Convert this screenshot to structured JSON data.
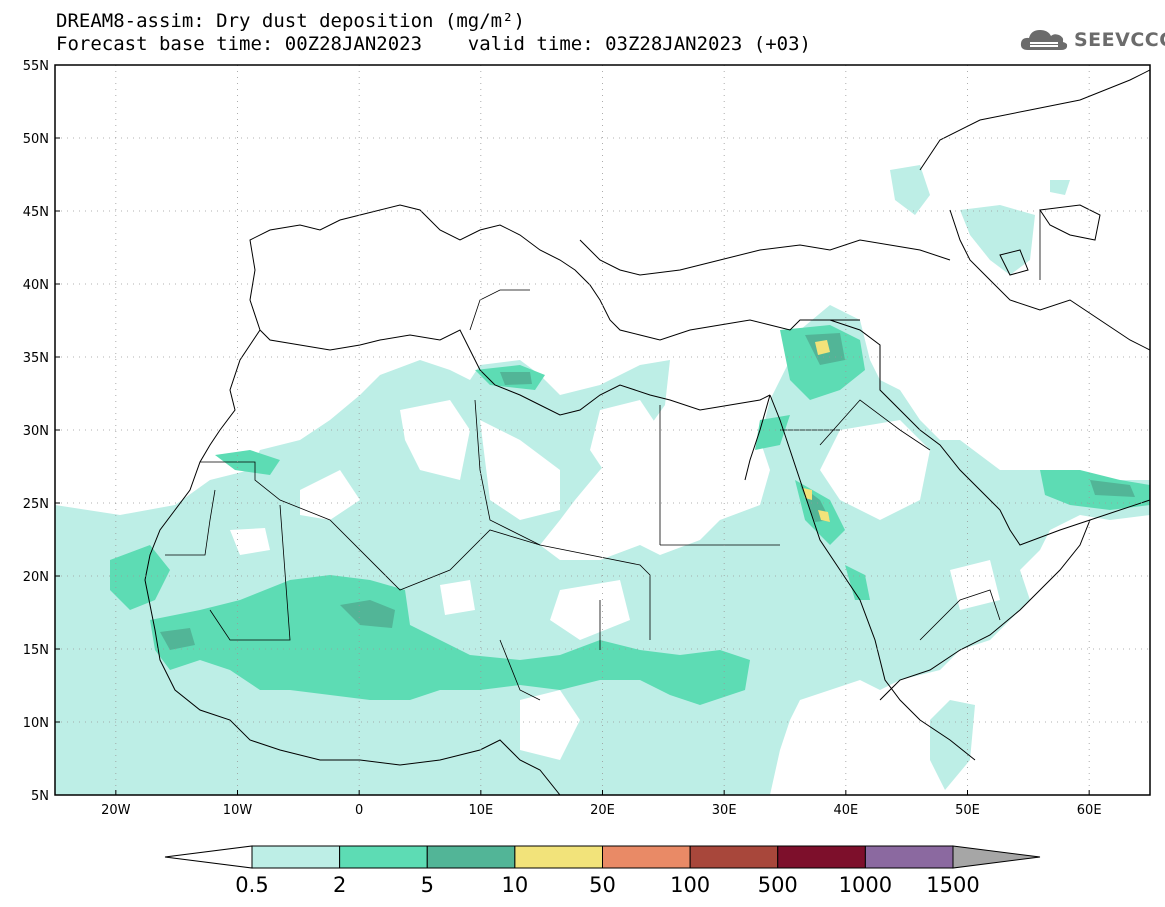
{
  "header": {
    "title_line1": "DREAM8-assim: Dry dust deposition (mg/m²)",
    "title_line2": "Forecast base time: 00Z28JAN2023    valid time: 03Z28JAN2023 (+03)",
    "logo_text": "SEEVCCC"
  },
  "map": {
    "lon_range": [
      -25,
      65
    ],
    "lat_range": [
      5,
      55
    ],
    "lat_ticks": [
      {
        "value": 55,
        "label": "55N"
      },
      {
        "value": 50,
        "label": "50N"
      },
      {
        "value": 45,
        "label": "45N"
      },
      {
        "value": 40,
        "label": "40N"
      },
      {
        "value": 35,
        "label": "35N"
      },
      {
        "value": 30,
        "label": "30N"
      },
      {
        "value": 25,
        "label": "25N"
      },
      {
        "value": 20,
        "label": "20N"
      },
      {
        "value": 15,
        "label": "15N"
      },
      {
        "value": 10,
        "label": "10N"
      },
      {
        "value": 5,
        "label": "5N"
      }
    ],
    "lon_ticks": [
      {
        "value": -20,
        "label": "20W"
      },
      {
        "value": -10,
        "label": "10W"
      },
      {
        "value": 0,
        "label": "0"
      },
      {
        "value": 10,
        "label": "10E"
      },
      {
        "value": 20,
        "label": "20E"
      },
      {
        "value": 30,
        "label": "30E"
      },
      {
        "value": 40,
        "label": "40E"
      },
      {
        "value": 50,
        "label": "50E"
      },
      {
        "value": 60,
        "label": "60E"
      }
    ]
  },
  "colorbar": {
    "colors": [
      "#ffffff",
      "#bdeee6",
      "#5ddcb4",
      "#52b597",
      "#f2e37a",
      "#e98a66",
      "#a8473b",
      "#7d0f2b",
      "#8b69a0",
      "#a6a6a6"
    ],
    "labels": [
      "0.5",
      "2",
      "5",
      "10",
      "50",
      "100",
      "500",
      "1000",
      "1500"
    ]
  },
  "colors": {
    "light": "#bdeee6",
    "medium": "#5ddcb4",
    "dark": "#52b597",
    "yellow": "#f2e37a"
  }
}
